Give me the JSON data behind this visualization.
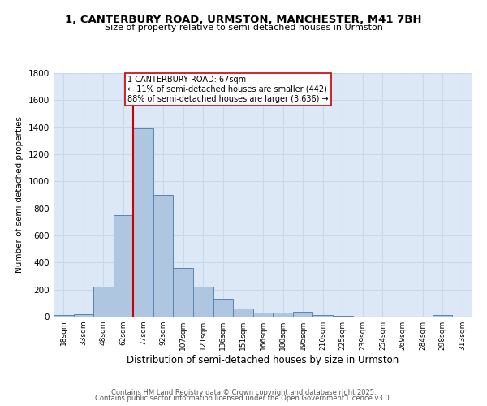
{
  "title1": "1, CANTERBURY ROAD, URMSTON, MANCHESTER, M41 7BH",
  "title2": "Size of property relative to semi-detached houses in Urmston",
  "xlabel": "Distribution of semi-detached houses by size in Urmston",
  "ylabel": "Number of semi-detached properties",
  "bar_labels": [
    "18sqm",
    "33sqm",
    "48sqm",
    "62sqm",
    "77sqm",
    "92sqm",
    "107sqm",
    "121sqm",
    "136sqm",
    "151sqm",
    "166sqm",
    "180sqm",
    "195sqm",
    "210sqm",
    "225sqm",
    "239sqm",
    "254sqm",
    "269sqm",
    "284sqm",
    "298sqm",
    "313sqm"
  ],
  "bar_values": [
    10,
    20,
    220,
    750,
    1390,
    900,
    360,
    220,
    130,
    60,
    30,
    30,
    35,
    10,
    5,
    2,
    2,
    2,
    2,
    10,
    2
  ],
  "bar_color": "#aec6e0",
  "bar_edge_color": "#5585b5",
  "grid_color": "#c8d8ea",
  "background_color": "#dce8f5",
  "vline_color": "#cc0000",
  "vline_pos": 3.5,
  "annotation_text": "1 CANTERBURY ROAD: 67sqm\n← 11% of semi-detached houses are smaller (442)\n88% of semi-detached houses are larger (3,636) →",
  "annotation_box_color": "#ffffff",
  "annotation_box_edge": "#cc0000",
  "ylim": [
    0,
    1800
  ],
  "yticks": [
    0,
    200,
    400,
    600,
    800,
    1000,
    1200,
    1400,
    1600,
    1800
  ],
  "footer1": "Contains HM Land Registry data © Crown copyright and database right 2025.",
  "footer2": "Contains public sector information licensed under the Open Government Licence v3.0."
}
